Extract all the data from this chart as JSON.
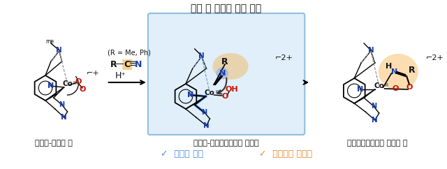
{
  "title": "분자 내 친핵성 공격 과정",
  "label_left": "코발트-퍼옥소 종",
  "label_center": "코발트-하이드로퍼옥소 활성종",
  "label_right": "퍼옥시이미데이토 코발트 종",
  "note_left": "✓  염기도 조절",
  "note_right": "✓  나이트릴 활성화",
  "note_left_color": "#4a90d9",
  "note_right_color": "#e88a2e",
  "charge_left": "⌐+",
  "charge_center": "⌐2+",
  "charge_right": "⌐2+",
  "box_bg": "#cce5f5",
  "box_border": "#5599cc",
  "n_color": "#1a3faa",
  "o_color": "#cc1100",
  "co_color": "#111111",
  "orange_glow": "#f5a020",
  "background": "#ffffff",
  "arrow_color": "#111111",
  "reagent_top": "(R = Me, Ph)",
  "reagent_rcn_r": "R",
  "reagent_rcn_dash": "—",
  "reagent_rcn_c": "C",
  "reagent_rcn_triple": "≡",
  "reagent_rcn_n": "N",
  "reagent_h": "H⁺"
}
